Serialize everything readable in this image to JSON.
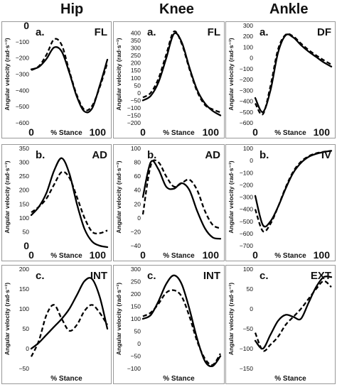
{
  "column_titles": [
    "Hip",
    "Knee",
    "Ankle"
  ],
  "chart_data": [
    {
      "type": "line",
      "column": "Hip",
      "panel_letter": "a.",
      "motion": "FL",
      "ylabel": "Angular velocity (rad·s⁻¹)",
      "xlabel": "% Stance",
      "x_tick_labels": [
        "0",
        "100"
      ],
      "ylim": [
        -600,
        0
      ],
      "yticks": [
        0,
        -100,
        -200,
        -300,
        -400,
        -500,
        -600
      ],
      "y_tick_labels": [
        "0",
        "−100",
        "−200",
        "−300",
        "−400",
        "−500",
        "−600"
      ],
      "x": [
        0,
        10,
        20,
        30,
        40,
        50,
        60,
        70,
        80,
        90,
        100
      ],
      "series": [
        {
          "style": "solid",
          "values": [
            -270,
            -255,
            -205,
            -135,
            -160,
            -290,
            -440,
            -530,
            -510,
            -370,
            -210
          ]
        },
        {
          "style": "dashed",
          "values": [
            -275,
            -250,
            -180,
            -85,
            -120,
            -280,
            -430,
            -520,
            -495,
            -380,
            -230
          ]
        }
      ]
    },
    {
      "type": "line",
      "column": "Knee",
      "panel_letter": "a.",
      "motion": "FL",
      "ylabel": "Angular velocity (rad·s⁻¹)",
      "xlabel": "% Stance",
      "x_tick_labels": [
        "0",
        "100"
      ],
      "ylim": [
        -200,
        450
      ],
      "yticks": [
        400,
        350,
        300,
        250,
        200,
        150,
        100,
        50,
        0,
        -50,
        -100,
        -150,
        -200
      ],
      "y_tick_labels": [
        "400",
        "350",
        "300",
        "250",
        "200",
        "150",
        "100",
        "50",
        "0",
        "−50",
        "−100",
        "−150",
        "−200"
      ],
      "x": [
        0,
        10,
        20,
        30,
        40,
        50,
        60,
        70,
        80,
        90,
        100
      ],
      "series": [
        {
          "style": "solid",
          "values": [
            -50,
            -20,
            70,
            230,
            395,
            340,
            170,
            20,
            -70,
            -120,
            -150
          ]
        },
        {
          "style": "dashed",
          "values": [
            -30,
            0,
            95,
            255,
            410,
            330,
            160,
            10,
            -80,
            -110,
            -130
          ]
        }
      ]
    },
    {
      "type": "line",
      "column": "Ankle",
      "panel_letter": "a.",
      "motion": "DF",
      "ylabel": "Angular velocity (rad·s⁻¹)",
      "xlabel": "% Stance",
      "x_tick_labels": [
        "0",
        "100"
      ],
      "ylim": [
        -600,
        300
      ],
      "yticks": [
        300,
        200,
        100,
        0,
        -100,
        -200,
        -300,
        -400,
        -500,
        -600
      ],
      "y_tick_labels": [
        "300",
        "200",
        "100",
        "0",
        "−100",
        "−200",
        "−300",
        "−400",
        "−500",
        "−600"
      ],
      "x": [
        0,
        10,
        20,
        30,
        40,
        50,
        60,
        70,
        80,
        90,
        100
      ],
      "series": [
        {
          "style": "solid",
          "values": [
            -370,
            -500,
            -300,
            50,
            210,
            190,
            120,
            60,
            10,
            -40,
            -80
          ]
        },
        {
          "style": "dashed",
          "values": [
            -420,
            -520,
            -260,
            80,
            215,
            200,
            135,
            75,
            25,
            -20,
            -60
          ]
        }
      ]
    },
    {
      "type": "line",
      "column": "Hip",
      "panel_letter": "b.",
      "motion": "AD",
      "ylabel": "Angular velocity (rad·s⁻¹)",
      "xlabel": "% Stance",
      "x_tick_labels": [
        "0",
        "100"
      ],
      "ylim": [
        0,
        350
      ],
      "yticks": [
        350,
        300,
        250,
        200,
        150,
        100,
        50,
        0
      ],
      "y_tick_labels": [
        "350",
        "300",
        "250",
        "200",
        "150",
        "100",
        "50",
        "0"
      ],
      "x": [
        0,
        10,
        20,
        30,
        40,
        50,
        60,
        70,
        80,
        90,
        100
      ],
      "series": [
        {
          "style": "solid",
          "values": [
            110,
            140,
            190,
            270,
            315,
            260,
            150,
            60,
            15,
            0,
            -5
          ]
        },
        {
          "style": "dashed",
          "values": [
            120,
            140,
            170,
            220,
            265,
            245,
            175,
            100,
            50,
            45,
            55
          ]
        }
      ]
    },
    {
      "type": "line",
      "column": "Knee",
      "panel_letter": "b.",
      "motion": "AD",
      "ylabel": "Angular velocity (rad·s⁻¹)",
      "xlabel": "% Stance",
      "x_tick_labels": [
        "0",
        "100"
      ],
      "ylim": [
        -40,
        100
      ],
      "yticks": [
        100,
        80,
        60,
        40,
        20,
        0,
        -20,
        -40
      ],
      "y_tick_labels": [
        "100",
        "80",
        "60",
        "40",
        "20",
        "0",
        "−20",
        "−40"
      ],
      "x": [
        0,
        10,
        20,
        30,
        40,
        50,
        60,
        70,
        80,
        90,
        100
      ],
      "series": [
        {
          "style": "solid",
          "values": [
            30,
            80,
            70,
            45,
            42,
            50,
            40,
            10,
            -15,
            -28,
            -30
          ]
        },
        {
          "style": "dashed",
          "values": [
            5,
            75,
            80,
            60,
            45,
            50,
            55,
            40,
            10,
            -10,
            -15
          ]
        }
      ]
    },
    {
      "type": "line",
      "column": "Ankle",
      "panel_letter": "b.",
      "motion": "IV",
      "ylabel": "Angular velocity (rad·s⁻¹)",
      "xlabel": "% Stance",
      "x_tick_labels": [
        "0",
        "100"
      ],
      "ylim": [
        -700,
        100
      ],
      "yticks": [
        100,
        0,
        -100,
        -200,
        -300,
        -400,
        -500,
        -600,
        -700
      ],
      "y_tick_labels": [
        "100",
        "0",
        "−100",
        "−200",
        "−300",
        "−400",
        "−500",
        "−600",
        "−700"
      ],
      "x": [
        0,
        10,
        20,
        30,
        40,
        50,
        60,
        70,
        80,
        90,
        100
      ],
      "series": [
        {
          "style": "solid",
          "values": [
            -290,
            -530,
            -500,
            -380,
            -230,
            -100,
            -20,
            30,
            55,
            70,
            80
          ]
        },
        {
          "style": "dashed",
          "values": [
            -400,
            -580,
            -520,
            -380,
            -220,
            -90,
            -10,
            35,
            60,
            72,
            80
          ]
        }
      ]
    },
    {
      "type": "line",
      "column": "Hip",
      "panel_letter": "c.",
      "motion": "INT",
      "ylabel": "Angular velocity (rad·s⁻¹)",
      "xlabel": "% Stance",
      "x_tick_labels": [],
      "ylim": [
        -50,
        200
      ],
      "yticks": [
        200,
        150,
        100,
        50,
        0,
        -50
      ],
      "y_tick_labels": [
        "200",
        "150",
        "100",
        "50",
        "0",
        "−50"
      ],
      "x": [
        0,
        10,
        20,
        30,
        40,
        50,
        60,
        70,
        80,
        90,
        100
      ],
      "series": [
        {
          "style": "solid",
          "values": [
            0,
            15,
            35,
            55,
            75,
            100,
            135,
            170,
            175,
            130,
            50
          ]
        },
        {
          "style": "dashed",
          "values": [
            -20,
            20,
            85,
            110,
            75,
            45,
            60,
            95,
            110,
            90,
            60
          ]
        }
      ]
    },
    {
      "type": "line",
      "column": "Knee",
      "panel_letter": "c.",
      "motion": "INT",
      "ylabel": "Angular velocity (rad·s⁻¹)",
      "xlabel": "% Stance",
      "x_tick_labels": [],
      "ylim": [
        -100,
        300
      ],
      "yticks": [
        300,
        250,
        200,
        150,
        100,
        50,
        0,
        -50,
        -100
      ],
      "y_tick_labels": [
        "300",
        "250",
        "200",
        "150",
        "100",
        "50",
        "0",
        "−50",
        "−100"
      ],
      "x": [
        0,
        10,
        20,
        30,
        40,
        50,
        60,
        70,
        80,
        90,
        100
      ],
      "series": [
        {
          "style": "solid",
          "values": [
            100,
            115,
            170,
            240,
            275,
            240,
            140,
            20,
            -70,
            -90,
            -50
          ]
        },
        {
          "style": "dashed",
          "values": [
            110,
            125,
            160,
            205,
            215,
            190,
            110,
            10,
            -60,
            -85,
            -40
          ]
        }
      ]
    },
    {
      "type": "line",
      "column": "Ankle",
      "panel_letter": "c.",
      "motion": "EXT",
      "ylabel": "Angular velocity (rad·s⁻¹)",
      "xlabel": "% Stance",
      "x_tick_labels": [],
      "ylim": [
        -150,
        100
      ],
      "yticks": [
        100,
        50,
        0,
        -50,
        -100,
        -150
      ],
      "y_tick_labels": [
        "100",
        "50",
        "0",
        "−50",
        "−100",
        "−150"
      ],
      "x": [
        0,
        10,
        20,
        30,
        40,
        50,
        60,
        70,
        80,
        90,
        100
      ],
      "series": [
        {
          "style": "solid",
          "values": [
            -80,
            -100,
            -65,
            -30,
            -15,
            -20,
            -25,
            15,
            55,
            80,
            80
          ]
        },
        {
          "style": "dashed",
          "values": [
            -60,
            -105,
            -90,
            -70,
            -40,
            -20,
            0,
            25,
            50,
            70,
            55
          ]
        }
      ]
    }
  ]
}
